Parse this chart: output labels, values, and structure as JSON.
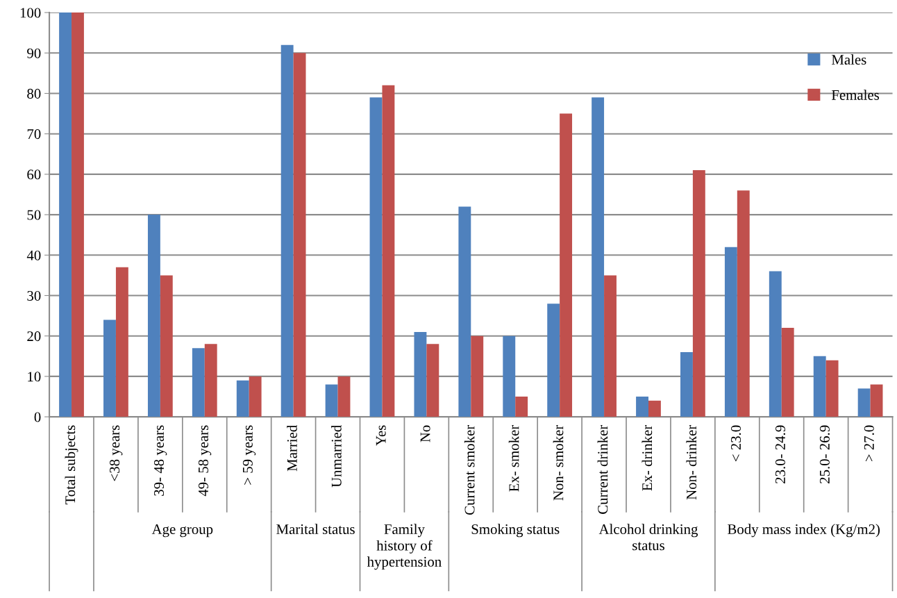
{
  "chart_data": {
    "type": "bar",
    "categories": [
      "Total subjects",
      "<38 years",
      "39- 48 years",
      "49- 58 years",
      "> 59 years",
      "Married",
      "Unmarried",
      "Yes",
      "No",
      "Current smoker",
      "Ex- smoker",
      "Non- smoker",
      "Current drinker",
      "Ex- drinker",
      "Non- drinker",
      "< 23.0",
      "23.0- 24.9",
      "25.0- 26.9",
      "> 27.0"
    ],
    "series": [
      {
        "name": "Males",
        "color": "#4f81bd",
        "values": [
          100,
          24,
          50,
          17,
          9,
          92,
          8,
          79,
          21,
          52,
          20,
          28,
          79,
          5,
          16,
          42,
          36,
          15,
          7
        ]
      },
      {
        "name": "Females",
        "color": "#c0504d",
        "values": [
          100,
          37,
          35,
          18,
          10,
          90,
          10,
          82,
          18,
          20,
          5,
          75,
          35,
          4,
          61,
          56,
          22,
          14,
          8
        ]
      }
    ],
    "annotations": [
      "Age group",
      "Marital status",
      "Family history of hypertension",
      "Smoking status",
      "Alcohol drinking status",
      "Body mass index (Kg/m2)"
    ],
    "ylim": [
      0,
      100
    ],
    "yticks": [
      0,
      10,
      20,
      30,
      40,
      50,
      60,
      70,
      80,
      90,
      100
    ],
    "grid": "y",
    "legend": "upper right"
  }
}
